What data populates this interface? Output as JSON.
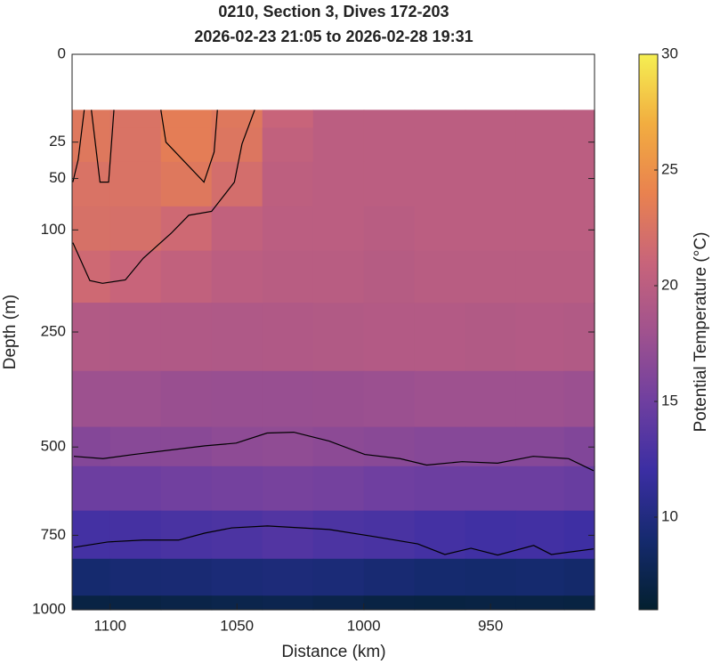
{
  "chart_data": {
    "type": "contour",
    "title": "0210, Section 3, Dives 172-203",
    "subtitle": "2026-02-23 21:05 to 2026-02-28 19:31",
    "x_label": "Distance (km)",
    "y_label": "Depth (m)",
    "colorbar_label": "Potential Temperature (°C)",
    "xlim": [
      1115,
      909
    ],
    "xticks": [
      1100,
      1050,
      1000,
      950
    ],
    "ylim": [
      0,
      1000
    ],
    "yticks": [
      0,
      25,
      50,
      100,
      250,
      500,
      750,
      1000
    ],
    "yscale": "sqrt",
    "clim": [
      6,
      30
    ],
    "cticks": [
      10,
      15,
      20,
      25,
      30
    ],
    "colormap": [
      "#03202f",
      "#152a6e",
      "#3b2ea3",
      "#6f3fa0",
      "#a0528e",
      "#c8647a",
      "#e9824f",
      "#f2ad40",
      "#f5ef52"
    ],
    "x": [
      1110,
      1090,
      1070,
      1050,
      1030,
      1010,
      990,
      970,
      950,
      930,
      912
    ],
    "y": [
      10,
      25,
      50,
      100,
      150,
      250,
      400,
      500,
      600,
      750,
      900,
      1000
    ],
    "z": [
      [
        23,
        22.5,
        23.5,
        23,
        21,
        20,
        20,
        20,
        20,
        20,
        20
      ],
      [
        23,
        22.5,
        23.5,
        22.8,
        20.5,
        20,
        20,
        20,
        20,
        20,
        20
      ],
      [
        22.5,
        22.5,
        23,
        22,
        20.2,
        20,
        20,
        20,
        20,
        20,
        20
      ],
      [
        22.3,
        22.2,
        21.5,
        20.5,
        20,
        20,
        19.8,
        20,
        20,
        20,
        20
      ],
      [
        21.5,
        21,
        20.5,
        20,
        19.8,
        19.8,
        19.6,
        19.8,
        19.8,
        19.8,
        19.8
      ],
      [
        19.3,
        19.2,
        19.2,
        19.1,
        19.2,
        19.3,
        19.4,
        19.4,
        19.3,
        19.4,
        19.3
      ],
      [
        17.8,
        17.8,
        17.6,
        17.5,
        17.5,
        17.6,
        17.7,
        17.9,
        17.9,
        17.9,
        17.7
      ],
      [
        16.3,
        16.5,
        16.6,
        16.9,
        17,
        16.8,
        16.6,
        16.4,
        16.4,
        16.4,
        16.1
      ],
      [
        14.8,
        14.9,
        15.1,
        15.3,
        15.5,
        15.3,
        15,
        14.8,
        14.8,
        14.8,
        14.6
      ],
      [
        12.5,
        12.6,
        12.8,
        13,
        13.3,
        13,
        12.8,
        12.5,
        12.3,
        12.4,
        12.2
      ],
      [
        9,
        9.2,
        9.3,
        9.5,
        9.6,
        9.5,
        9.2,
        9,
        8.9,
        9,
        8.8
      ],
      [
        7,
        7,
        7.2,
        7.4,
        7.5,
        7.3,
        7,
        6.9,
        7,
        7,
        6.9
      ]
    ],
    "contours": [
      {
        "x": [
          1114.7,
          1108,
          1103,
          1094,
          1087,
          1076,
          1069,
          1060,
          1051,
          1048,
          1043
        ],
        "y": [
          115,
          166,
          170,
          165,
          135,
          104,
          84,
          80,
          53,
          26,
          10
        ]
      },
      {
        "x": [
          1114.7,
          1112.6,
          1110.2
        ],
        "y": [
          53,
          36,
          10
        ]
      },
      {
        "x": [
          1107.4,
          1104,
          1100.6,
          1098.5
        ],
        "y": [
          10,
          53,
          53,
          10
        ]
      },
      {
        "x": [
          1080,
          1078,
          1063,
          1059,
          1057.7
        ],
        "y": [
          10,
          25,
          53,
          31,
          10
        ]
      },
      {
        "x": [
          1114.3,
          1102.8,
          1090.6,
          1062.6,
          1050.3,
          1038.1,
          1027.6,
          1013.6,
          999.6,
          985.7,
          975.2,
          961.2,
          947.2,
          933.2,
          919.2,
          909.4
        ],
        "y": [
          524,
          530,
          519,
          497,
          490,
          465,
          463,
          485,
          519,
          530,
          547,
          538,
          542,
          524,
          530,
          562
        ]
      },
      {
        "x": [
          1114.3,
          1101,
          1087,
          1073,
          1062.6,
          1052,
          1038,
          1013.6,
          996,
          978.7,
          968,
          957.7,
          947.2,
          933,
          926,
          909.4
        ],
        "y": [
          788,
          771,
          765,
          765,
          743,
          727,
          721,
          732,
          754,
          777,
          811,
          791,
          813,
          782,
          811,
          793
        ]
      }
    ]
  }
}
